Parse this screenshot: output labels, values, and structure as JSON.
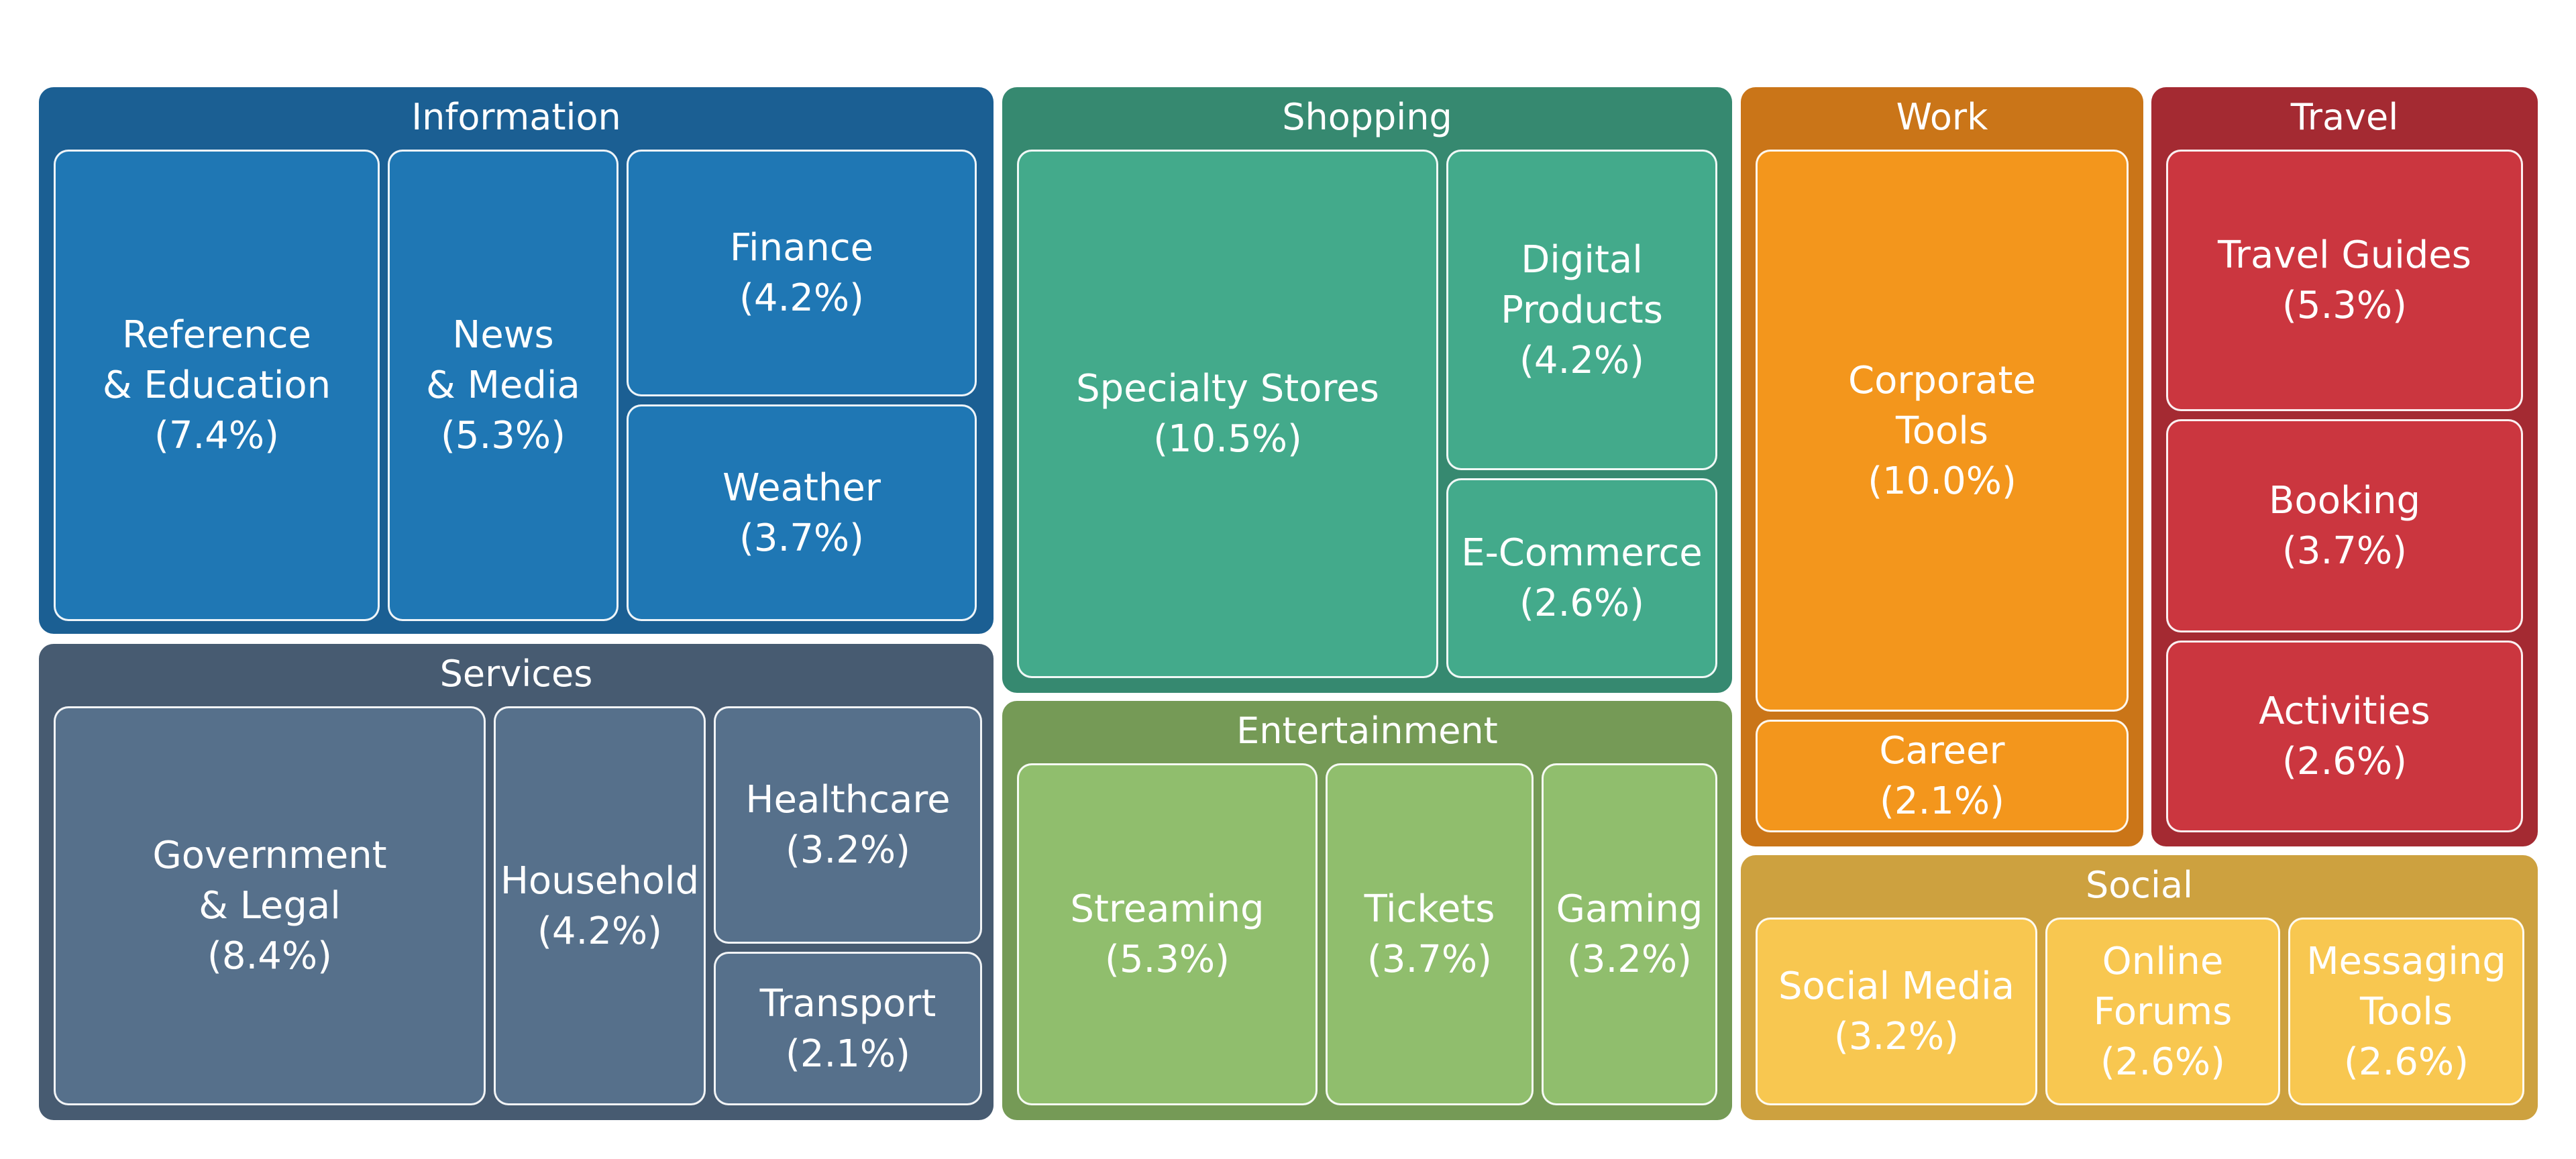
{
  "chart_data": {
    "type": "treemap",
    "groups": [
      {
        "name": "Information",
        "color": "#1b5f93",
        "children": [
          {
            "label_lines": [
              "Reference",
              "& Education"
            ],
            "name": "Reference & Education",
            "value": 7.4,
            "value_label": "(7.4%)",
            "color": "#1f77b4"
          },
          {
            "label_lines": [
              "News",
              "& Media"
            ],
            "name": "News & Media",
            "value": 5.3,
            "value_label": "(5.3%)",
            "color": "#1f77b4"
          },
          {
            "label_lines": [
              "Finance"
            ],
            "name": "Finance",
            "value": 4.2,
            "value_label": "(4.2%)",
            "color": "#1f77b4"
          },
          {
            "label_lines": [
              "Weather"
            ],
            "name": "Weather",
            "value": 3.7,
            "value_label": "(3.7%)",
            "color": "#1f77b4"
          }
        ]
      },
      {
        "name": "Services",
        "color": "#475b71",
        "children": [
          {
            "label_lines": [
              "Government",
              "& Legal"
            ],
            "name": "Government & Legal",
            "value": 8.4,
            "value_label": "(8.4%)",
            "color": "#56708b"
          },
          {
            "label_lines": [
              "Household"
            ],
            "name": "Household",
            "value": 4.2,
            "value_label": "(4.2%)",
            "color": "#56708b"
          },
          {
            "label_lines": [
              "Healthcare"
            ],
            "name": "Healthcare",
            "value": 3.2,
            "value_label": "(3.2%)",
            "color": "#56708b"
          },
          {
            "label_lines": [
              "Transport"
            ],
            "name": "Transport",
            "value": 2.1,
            "value_label": "(2.1%)",
            "color": "#56708b"
          }
        ]
      },
      {
        "name": "Shopping",
        "color": "#368970",
        "children": [
          {
            "label_lines": [
              "Specialty Stores"
            ],
            "name": "Specialty Stores",
            "value": 10.5,
            "value_label": "(10.5%)",
            "color": "#43aa8b"
          },
          {
            "label_lines": [
              "Digital",
              "Products"
            ],
            "name": "Digital Products",
            "value": 4.2,
            "value_label": "(4.2%)",
            "color": "#43aa8b"
          },
          {
            "label_lines": [
              "E-Commerce"
            ],
            "name": "E-Commerce",
            "value": 2.6,
            "value_label": "(2.6%)",
            "color": "#43aa8b"
          }
        ]
      },
      {
        "name": "Entertainment",
        "color": "#759a56",
        "children": [
          {
            "label_lines": [
              "Streaming"
            ],
            "name": "Streaming",
            "value": 5.3,
            "value_label": "(5.3%)",
            "color": "#90be6d"
          },
          {
            "label_lines": [
              "Tickets"
            ],
            "name": "Tickets",
            "value": 3.7,
            "value_label": "(3.7%)",
            "color": "#90be6d"
          },
          {
            "label_lines": [
              "Gaming"
            ],
            "name": "Gaming",
            "value": 3.2,
            "value_label": "(3.2%)",
            "color": "#90be6d"
          }
        ]
      },
      {
        "name": "Work",
        "color": "#ca7518",
        "children": [
          {
            "label_lines": [
              "Corporate",
              "Tools"
            ],
            "name": "Corporate Tools",
            "value": 10.0,
            "value_label": "(10.0%)",
            "color": "#f3961c"
          },
          {
            "label_lines": [
              "Career"
            ],
            "name": "Career",
            "value": 2.1,
            "value_label": "(2.1%)",
            "color": "#f3961c"
          }
        ]
      },
      {
        "name": "Travel",
        "color": "#a42a32",
        "children": [
          {
            "label_lines": [
              "Travel Guides"
            ],
            "name": "Travel Guides",
            "value": 5.3,
            "value_label": "(5.3%)",
            "color": "#cb363f"
          },
          {
            "label_lines": [
              "Booking"
            ],
            "name": "Booking",
            "value": 3.7,
            "value_label": "(3.7%)",
            "color": "#cb363f"
          },
          {
            "label_lines": [
              "Activities"
            ],
            "name": "Activities",
            "value": 2.6,
            "value_label": "(2.6%)",
            "color": "#cb363f"
          }
        ]
      },
      {
        "name": "Social",
        "color": "#cda13f",
        "children": [
          {
            "label_lines": [
              "Social Media"
            ],
            "name": "Social Media",
            "value": 3.2,
            "value_label": "(3.2%)",
            "color": "#f8c750"
          },
          {
            "label_lines": [
              "Online",
              "Forums"
            ],
            "name": "Online Forums",
            "value": 2.6,
            "value_label": "(2.6%)",
            "color": "#f8c750"
          },
          {
            "label_lines": [
              "Messaging",
              "Tools"
            ],
            "name": "Messaging Tools",
            "value": 2.6,
            "value_label": "(2.6%)",
            "color": "#f8c750"
          }
        ]
      }
    ]
  }
}
